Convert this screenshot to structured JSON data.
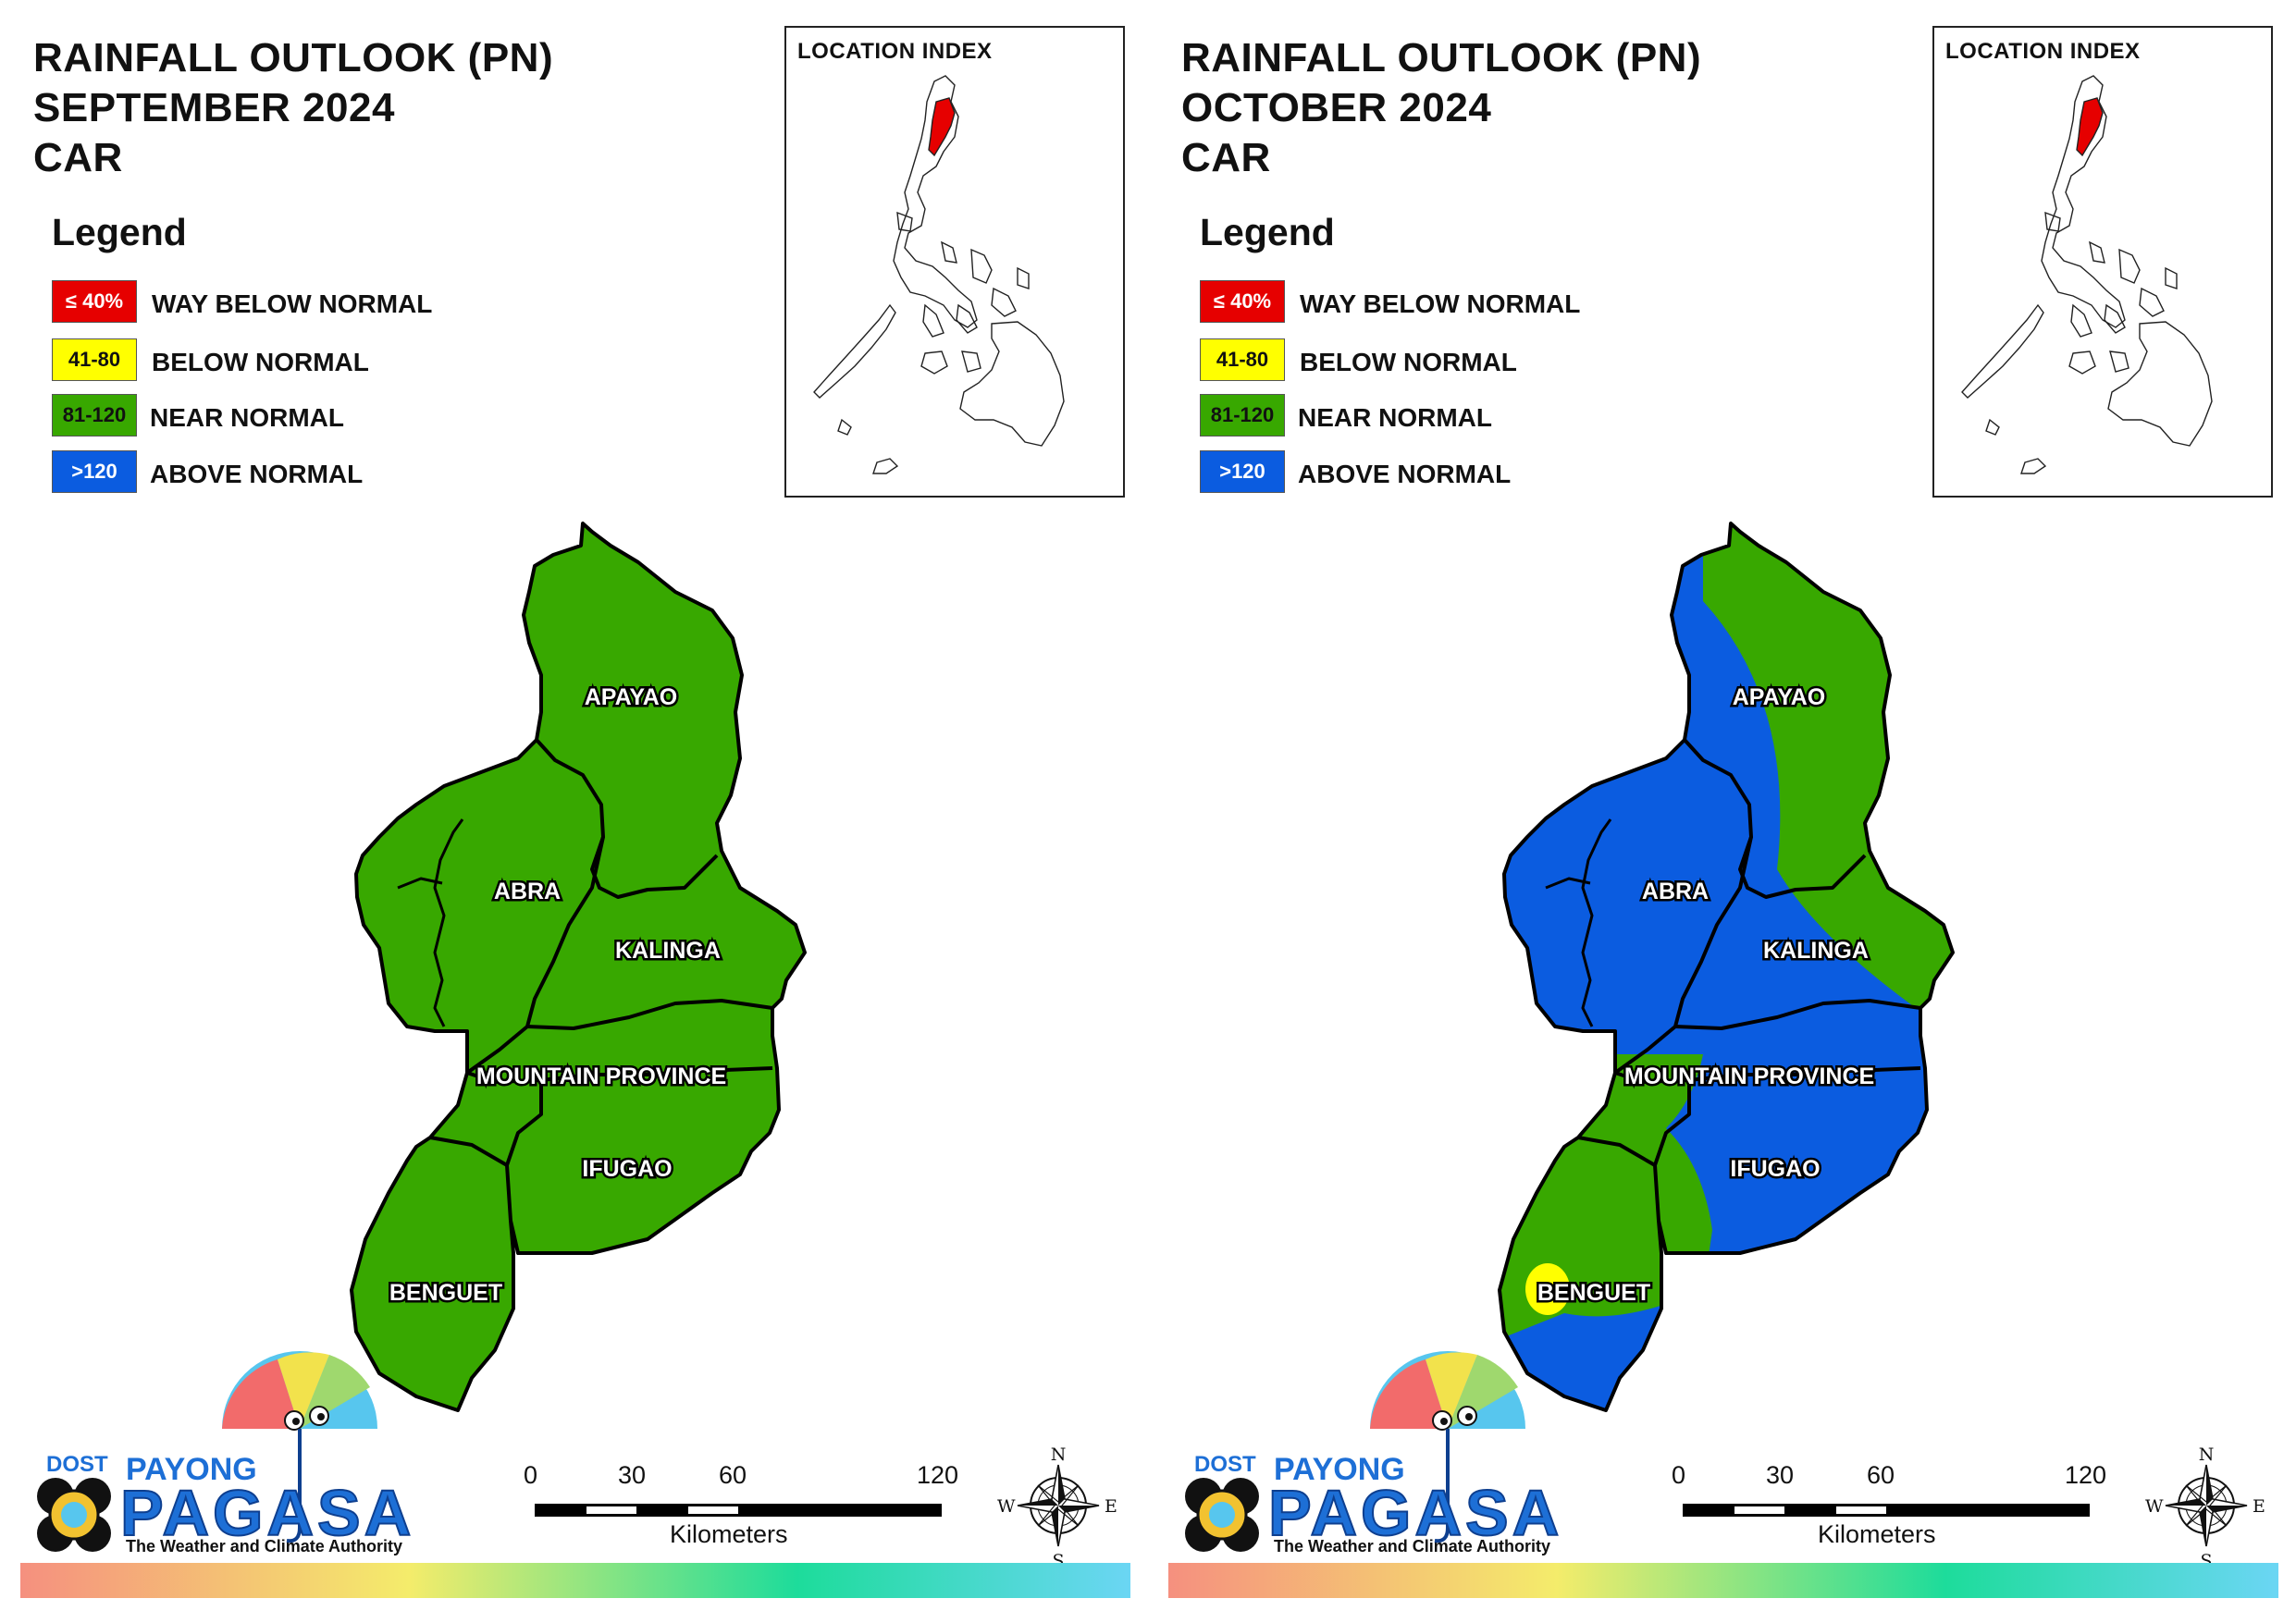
{
  "colors": {
    "way_below": "#e60000",
    "below": "#ffff00",
    "near": "#38a800",
    "above": "#0b5ce0",
    "outline": "#000000",
    "brand_blue": "#1d6fd6"
  },
  "legend": {
    "title": "Legend",
    "items": [
      {
        "range": "≤ 40%",
        "label": "WAY BELOW NORMAL",
        "color": "#e60000",
        "text_color": "#ffffff"
      },
      {
        "range": "41-80",
        "label": "BELOW NORMAL",
        "color": "#ffff00",
        "text_color": "#111111"
      },
      {
        "range": "81-120",
        "label": "NEAR NORMAL",
        "color": "#38a800",
        "text_color": "#111111"
      },
      {
        "range": ">120",
        "label": "ABOVE NORMAL",
        "color": "#0b5ce0",
        "text_color": "#ffffff"
      }
    ]
  },
  "location_index": {
    "title": "LOCATION INDEX"
  },
  "scale_bar": {
    "ticks": [
      "0",
      "30",
      "60",
      "120"
    ],
    "unit": "Kilometers"
  },
  "compass": {
    "n": "N",
    "s": "S",
    "e": "E",
    "w": "W"
  },
  "logo": {
    "dost": "DOST",
    "payong": "PAYONG",
    "pagasa": "PAGASA",
    "tagline": "The Weather and Climate Authority"
  },
  "provinces": [
    "APAYAO",
    "ABRA",
    "KALINGA",
    "MOUNTAIN PROVINCE",
    "IFUGAO",
    "BENGUET"
  ],
  "panels": [
    {
      "title_lines": [
        "RAINFALL OUTLOOK (PN)",
        "SEPTEMBER 2024",
        "CAR"
      ],
      "outlook": {
        "APAYAO": "NEAR NORMAL",
        "ABRA": "NEAR NORMAL",
        "KALINGA": "NEAR NORMAL",
        "MOUNTAIN PROVINCE": "NEAR NORMAL",
        "IFUGAO": "NEAR NORMAL",
        "BENGUET": "NEAR NORMAL"
      }
    },
    {
      "title_lines": [
        "RAINFALL OUTLOOK (PN)",
        "OCTOBER 2024",
        "CAR"
      ],
      "outlook": {
        "APAYAO": "ABOVE NORMAL (west), NEAR NORMAL (east)",
        "ABRA": "ABOVE NORMAL",
        "KALINGA": "ABOVE NORMAL (west), NEAR NORMAL (east)",
        "MOUNTAIN PROVINCE": "ABOVE NORMAL (east), NEAR NORMAL (west)",
        "IFUGAO": "ABOVE NORMAL (east), NEAR NORMAL (west)",
        "BENGUET": "NEAR NORMAL (north), ABOVE NORMAL (south), BELOW NORMAL (small area west)"
      }
    }
  ]
}
